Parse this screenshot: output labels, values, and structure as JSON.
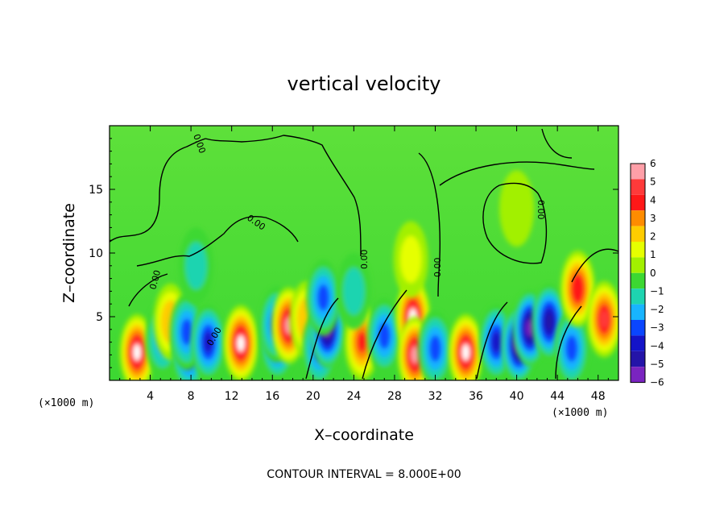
{
  "chart_data": {
    "type": "heatmap",
    "title": "vertical velocity",
    "xlabel": "X–coordinate",
    "ylabel": "Z–coordinate",
    "x_unit": "(×1000 m)",
    "y_unit": "(×1000 m)",
    "xlim": [
      0,
      50
    ],
    "ylim": [
      0,
      20
    ],
    "x_ticks": [
      4,
      8,
      12,
      16,
      20,
      24,
      28,
      32,
      36,
      40,
      44,
      48
    ],
    "y_ticks": [
      5,
      10,
      15
    ],
    "colorbar": {
      "levels": [
        6,
        5,
        4,
        3,
        2,
        1,
        0,
        -1,
        -2,
        -3,
        -4,
        -5,
        -6
      ],
      "colors": [
        "#ff9fa8",
        "#ff3a3a",
        "#ff1818",
        "#ff8c00",
        "#ffcc00",
        "#e6ff00",
        "#a2f000",
        "#3cd832",
        "#1ed4b0",
        "#18b4ff",
        "#0a46ff",
        "#1414c8",
        "#2414a8",
        "#7a24c0"
      ]
    },
    "contour_label": "0.00",
    "footnote": "CONTOUR INTERVAL = 8.000E+00",
    "features": [
      {
        "x": 2.7,
        "z": 2.2,
        "w": 6.3
      },
      {
        "x": 5.2,
        "z": 3.2,
        "w": -2.5
      },
      {
        "x": 6.0,
        "z": 4.6,
        "w": 3.0
      },
      {
        "x": 7.8,
        "z": 2.2,
        "w": -4.0
      },
      {
        "x": 7.6,
        "z": 3.8,
        "w": -3.2
      },
      {
        "x": 9.7,
        "z": 3.0,
        "w": -4.5
      },
      {
        "x": 12.9,
        "z": 2.9,
        "w": 6.5
      },
      {
        "x": 16.5,
        "z": 3.0,
        "w": -4.5
      },
      {
        "x": 16.4,
        "z": 4.4,
        "w": -3.5
      },
      {
        "x": 17.6,
        "z": 4.3,
        "w": 6.0
      },
      {
        "x": 19.4,
        "z": 4.8,
        "w": 3.0
      },
      {
        "x": 20.6,
        "z": 2.5,
        "w": -3.8
      },
      {
        "x": 21.4,
        "z": 4.0,
        "w": -6.0
      },
      {
        "x": 21.0,
        "z": 6.5,
        "w": -3.0
      },
      {
        "x": 24.8,
        "z": 3.0,
        "w": 4.8
      },
      {
        "x": 27.0,
        "z": 3.5,
        "w": -3.2
      },
      {
        "x": 29.8,
        "z": 5.0,
        "w": 6.5
      },
      {
        "x": 30.0,
        "z": 2.0,
        "w": 6.0
      },
      {
        "x": 29.6,
        "z": 9.5,
        "w": 1.5
      },
      {
        "x": 32.0,
        "z": 2.5,
        "w": -3.0
      },
      {
        "x": 35.0,
        "z": 2.2,
        "w": 6.5
      },
      {
        "x": 38.0,
        "z": 3.0,
        "w": -4.5
      },
      {
        "x": 40.2,
        "z": 2.8,
        "w": -6.0
      },
      {
        "x": 41.3,
        "z": 4.1,
        "w": -6.0
      },
      {
        "x": 43.2,
        "z": 4.6,
        "w": -5.5
      },
      {
        "x": 45.4,
        "z": 2.5,
        "w": -3.0
      },
      {
        "x": 46.0,
        "z": 7.2,
        "w": 5.0
      },
      {
        "x": 48.6,
        "z": 4.8,
        "w": 5.2
      },
      {
        "x": 24.0,
        "z": 7.0,
        "w": -1.8
      },
      {
        "x": 8.5,
        "z": 9.0,
        "w": -1.2
      },
      {
        "x": 40.0,
        "z": 13.5,
        "w": 0.6
      }
    ]
  }
}
